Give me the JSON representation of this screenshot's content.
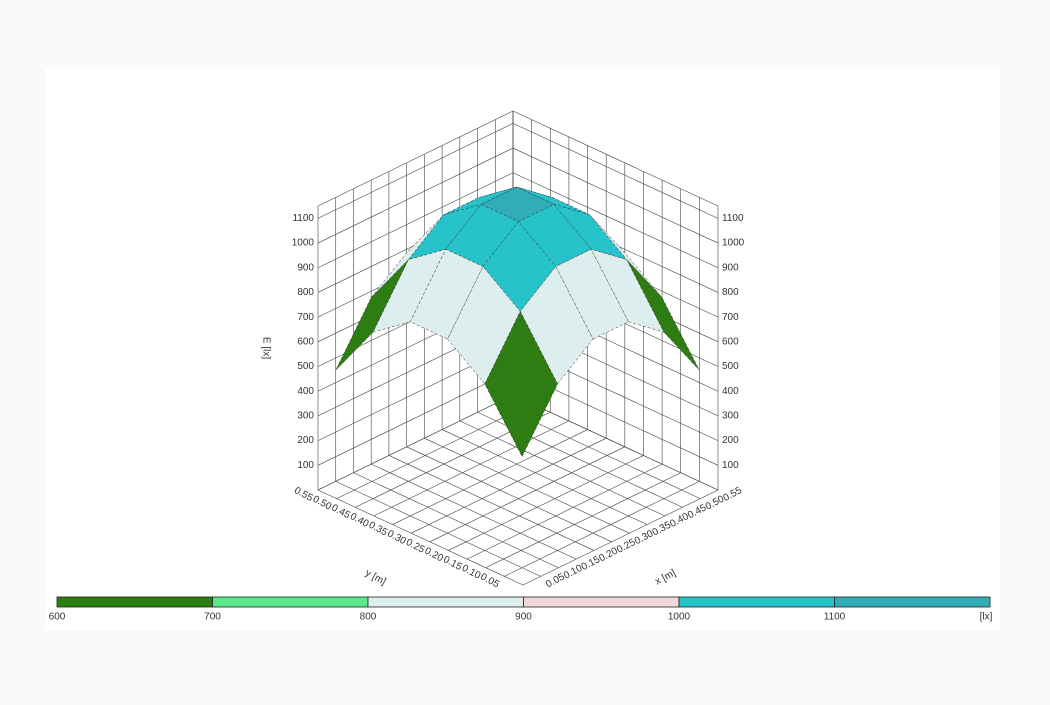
{
  "chart_data": {
    "type": "surface",
    "x": [
      0.05,
      0.15,
      0.25,
      0.35,
      0.45,
      0.55
    ],
    "y": [
      0.05,
      0.15,
      0.25,
      0.35,
      0.45,
      0.55
    ],
    "z": [
      [
        450,
        674,
        786,
        786,
        674,
        450
      ],
      [
        674,
        898,
        1010,
        1010,
        898,
        674
      ],
      [
        786,
        1010,
        1122,
        1122,
        1010,
        786
      ],
      [
        786,
        1010,
        1122,
        1122,
        1010,
        786
      ],
      [
        674,
        898,
        1010,
        1010,
        898,
        674
      ],
      [
        450,
        674,
        786,
        786,
        674,
        450
      ]
    ],
    "xlabel": "x [m]",
    "ylabel": "y [m]",
    "zlabel": "E [lx]",
    "xlim": [
      0,
      0.55
    ],
    "ylim": [
      0,
      0.55
    ],
    "zlim": [
      0,
      1150
    ],
    "xticks": [
      0.05,
      {
        "value": 0.1,
        "label": "0.10"
      },
      0.15,
      {
        "value": 0.2,
        "label": "0.20"
      },
      0.25,
      {
        "value": 0.3,
        "label": "0.30"
      },
      0.35,
      {
        "value": 0.4,
        "label": "0.40"
      },
      0.45,
      {
        "value": 0.5,
        "label": "0.50"
      },
      0.55
    ],
    "yticks": [
      0.05,
      {
        "value": 0.1,
        "label": "0.10"
      },
      0.15,
      {
        "value": 0.2,
        "label": "0.20"
      },
      0.25,
      {
        "value": 0.3,
        "label": "0.30"
      },
      0.35,
      {
        "value": 0.4,
        "label": "0.40"
      },
      0.45,
      {
        "value": 0.5,
        "label": "0.50"
      },
      0.55
    ],
    "zticks": [
      100,
      200,
      300,
      400,
      500,
      600,
      700,
      800,
      900,
      1000,
      1100
    ],
    "grid": true,
    "below_color": "#b8b8b8",
    "colorbar": {
      "levels": [
        600,
        700,
        800,
        900,
        1000,
        1100
      ],
      "colors": [
        "#2e7d13",
        "#5ce88a",
        "#dcefee",
        "#f2d8da",
        "#27c3cb",
        "#30adb9"
      ],
      "unit": "[lx]"
    }
  }
}
